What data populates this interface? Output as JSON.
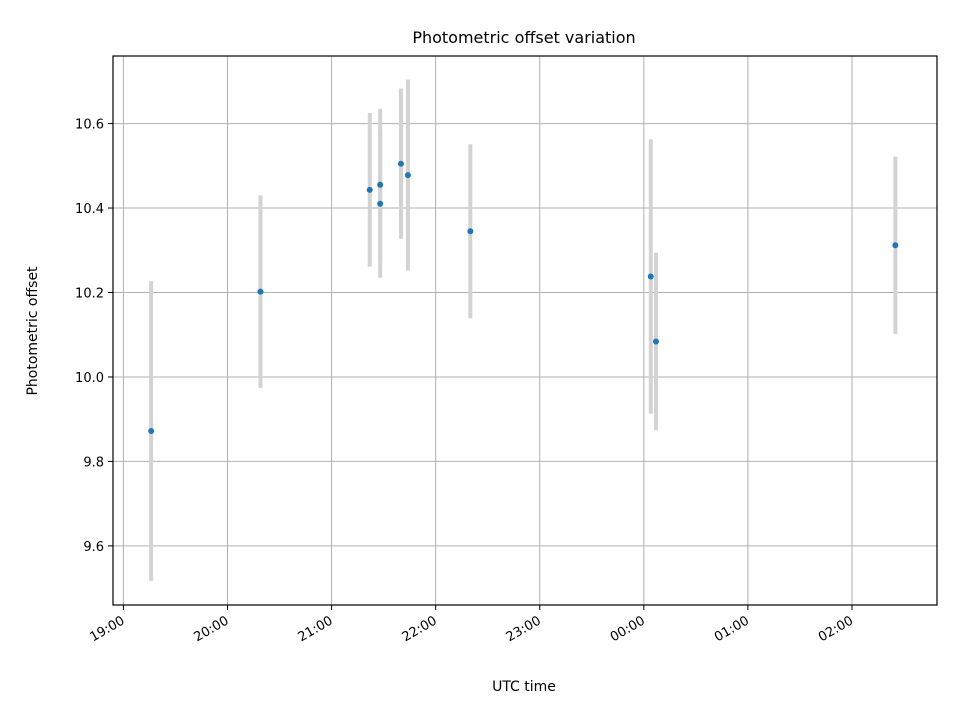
{
  "chart_data": {
    "type": "scatter",
    "title": "Photometric offset variation",
    "xlabel": "UTC time",
    "ylabel": "Photometric offset",
    "grid": true,
    "x_tick_labels": [
      "19:00",
      "20:00",
      "21:00",
      "22:00",
      "23:00",
      "00:00",
      "01:00",
      "02:00"
    ],
    "y_ticks": [
      9.6,
      9.8,
      10.0,
      10.2,
      10.4,
      10.6
    ],
    "y_tick_labels": [
      "9.6",
      "9.8",
      "10.0",
      "10.2",
      "10.4",
      "10.6"
    ],
    "ylim": [
      9.46,
      10.76
    ],
    "xlim": [
      "18:54",
      "02:49"
    ],
    "marker_color": "#1f77b4",
    "errorbar_color": "#d3d3d3",
    "points": [
      {
        "time": "19:16",
        "y": 9.872,
        "error": 0.355
      },
      {
        "time": "20:19",
        "y": 10.202,
        "error": 0.228
      },
      {
        "time": "21:22",
        "y": 10.443,
        "error": 0.182
      },
      {
        "time": "21:28",
        "y": 10.455,
        "error": 0.18
      },
      {
        "time": "21:28",
        "y": 10.41,
        "error": 0.175
      },
      {
        "time": "21:40",
        "y": 10.505,
        "error": 0.178
      },
      {
        "time": "21:44",
        "y": 10.478,
        "error": 0.226
      },
      {
        "time": "22:20",
        "y": 10.345,
        "error": 0.206
      },
      {
        "time": "00:04",
        "y": 10.238,
        "error": 0.325
      },
      {
        "time": "00:07",
        "y": 10.084,
        "error": 0.21
      },
      {
        "time": "02:25",
        "y": 10.312,
        "error": 0.21
      }
    ]
  }
}
